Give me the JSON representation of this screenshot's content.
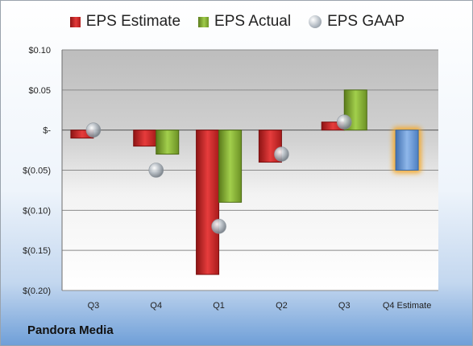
{
  "chart_data": {
    "type": "bar",
    "title": "",
    "xlabel": "",
    "ylabel": "",
    "categories": [
      "Q3",
      "Q4",
      "Q1",
      "Q2",
      "Q3",
      "Q4 Estimate"
    ],
    "ylim": [
      -0.2,
      0.1
    ],
    "yticks": [
      0.1,
      0.05,
      0,
      -0.05,
      -0.1,
      -0.15,
      -0.2
    ],
    "ytick_labels": [
      "$0.10",
      "$0.05",
      "$-",
      "$(0.05)",
      "$(0.10)",
      "$(0.15)",
      "$(0.20)"
    ],
    "grid": true,
    "legend_position": "top",
    "series": [
      {
        "name": "EPS Estimate",
        "kind": "bar",
        "color": "#c0201f",
        "values": [
          -0.01,
          -0.02,
          -0.18,
          -0.04,
          0.01,
          null
        ]
      },
      {
        "name": "EPS Actual",
        "kind": "bar",
        "color": "#7ea83a",
        "values": [
          null,
          -0.03,
          -0.09,
          null,
          0.05,
          null
        ]
      },
      {
        "name": "EPS GAAP",
        "kind": "point",
        "color": "#a8b0b8",
        "values": [
          0.0,
          -0.05,
          -0.12,
          -0.03,
          0.01,
          null
        ]
      },
      {
        "name": "",
        "kind": "bar",
        "color": "#6a9bd8",
        "highlight": "#f5a623",
        "values": [
          null,
          null,
          null,
          null,
          null,
          -0.05
        ]
      }
    ],
    "company": "Pandora Media"
  }
}
